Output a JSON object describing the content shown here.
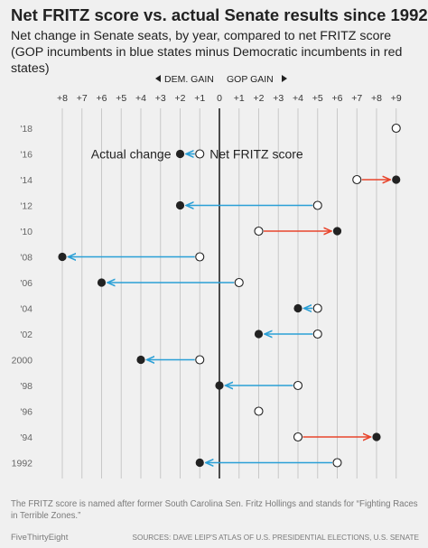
{
  "chart_data": {
    "type": "dumbbell",
    "title": "Net FRITZ score vs. actual Senate results since 1992",
    "subtitle": "Net change in Senate seats, by year, compared to net FRITZ score (GOP incumbents in blue states minus Democratic incumbents in red states)",
    "direction_labels": {
      "left": "DEM. GAIN",
      "right": "GOP GAIN"
    },
    "x_ticks": [
      {
        "value": -8,
        "label": "+8"
      },
      {
        "value": -7,
        "label": "+7"
      },
      {
        "value": -6,
        "label": "+6"
      },
      {
        "value": -5,
        "label": "+5"
      },
      {
        "value": -4,
        "label": "+4"
      },
      {
        "value": -3,
        "label": "+3"
      },
      {
        "value": -2,
        "label": "+2"
      },
      {
        "value": -1,
        "label": "+1"
      },
      {
        "value": 0,
        "label": "0"
      },
      {
        "value": 1,
        "label": "+1"
      },
      {
        "value": 2,
        "label": "+2"
      },
      {
        "value": 3,
        "label": "+3"
      },
      {
        "value": 4,
        "label": "+4"
      },
      {
        "value": 5,
        "label": "+5"
      },
      {
        "value": 6,
        "label": "+6"
      },
      {
        "value": 7,
        "label": "+7"
      },
      {
        "value": 8,
        "label": "+8"
      },
      {
        "value": 9,
        "label": "+9"
      }
    ],
    "xlim": [
      -8,
      9
    ],
    "legend": {
      "actual": "Actual change",
      "fritz": "Net FRITZ score"
    },
    "rows": [
      {
        "year": "'18",
        "fritz": 9,
        "actual": null
      },
      {
        "year": "'16",
        "fritz": -1,
        "actual": -2
      },
      {
        "year": "'14",
        "fritz": 7,
        "actual": 9
      },
      {
        "year": "'12",
        "fritz": 5,
        "actual": -2
      },
      {
        "year": "'10",
        "fritz": 2,
        "actual": 6
      },
      {
        "year": "'08",
        "fritz": -1,
        "actual": -8
      },
      {
        "year": "'06",
        "fritz": 1,
        "actual": -6
      },
      {
        "year": "'04",
        "fritz": 5,
        "actual": 4
      },
      {
        "year": "'02",
        "fritz": 5,
        "actual": 2
      },
      {
        "year": "2000",
        "fritz": -1,
        "actual": -4
      },
      {
        "year": "'98",
        "fritz": 4,
        "actual": 0
      },
      {
        "year": "'96",
        "fritz": 2,
        "actual": null
      },
      {
        "year": "'94",
        "fritz": 4,
        "actual": 8
      },
      {
        "year": "1992",
        "fritz": 6,
        "actual": -1
      }
    ],
    "colors": {
      "dem_arrow": "#2a9fd6",
      "gop_arrow": "#e8452c",
      "grid": "#c8c8c8",
      "zero_line": "#222222",
      "dot": "#222222"
    },
    "footnote": "The FRITZ score is named after former South Carolina Sen. Fritz Hollings and stands for “Fighting Races in Terrible Zones.”",
    "brand": "FiveThirtyEight",
    "source": "SOURCES: DAVE LEIP'S ATLAS OF U.S. PRESIDENTIAL ELECTIONS, U.S. SENATE"
  }
}
